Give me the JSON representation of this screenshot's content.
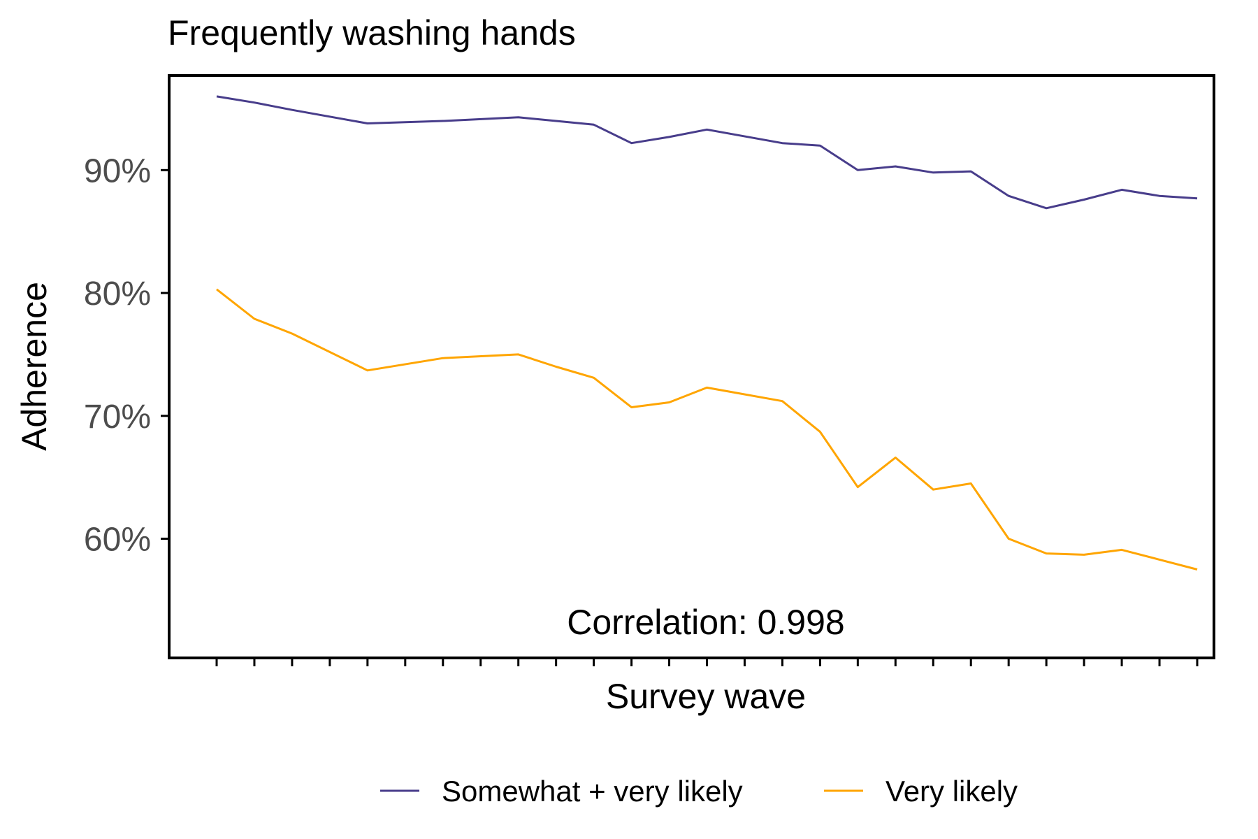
{
  "chart_data": {
    "type": "line",
    "title": "Frequently washing hands",
    "xlabel": "Survey wave",
    "ylabel": "Adherence",
    "x": [
      1,
      2,
      3,
      4,
      5,
      6,
      7,
      8,
      9,
      10,
      11,
      12,
      13,
      14,
      15,
      16,
      17,
      18,
      19,
      20,
      21,
      22,
      23,
      24,
      25,
      26,
      27
    ],
    "xlim": [
      1,
      27
    ],
    "ylim": [
      50.3,
      97.7
    ],
    "yticks": [
      60,
      70,
      80,
      90
    ],
    "ytick_labels": [
      "60%",
      "70%",
      "80%",
      "90%"
    ],
    "grid": false,
    "legend_position": "bottom",
    "annotation": "Correlation: 0.998",
    "colors": {
      "somewhat_very": "#483D8B",
      "very": "#FFA500"
    },
    "series": [
      {
        "name": "Somewhat + very likely",
        "color": "#483D8B",
        "x": [
          1,
          2,
          3,
          5,
          7,
          9,
          10,
          11,
          12,
          13,
          14,
          16,
          17,
          18,
          19,
          20,
          21,
          22,
          23,
          24,
          25,
          26,
          27
        ],
        "values": [
          96.0,
          95.5,
          94.9,
          93.8,
          94.0,
          94.3,
          94.0,
          93.7,
          92.2,
          92.7,
          93.3,
          92.2,
          92.0,
          90.0,
          90.3,
          89.8,
          89.9,
          87.9,
          86.9,
          87.6,
          88.4,
          87.9,
          87.7
        ]
      },
      {
        "name": "Very likely",
        "color": "#FFA500",
        "x": [
          1,
          2,
          3,
          5,
          7,
          9,
          10,
          11,
          12,
          13,
          14,
          16,
          17,
          18,
          19,
          20,
          21,
          22,
          23,
          24,
          25,
          26,
          27
        ],
        "values": [
          80.3,
          77.9,
          76.7,
          73.7,
          74.7,
          75.0,
          74.0,
          73.1,
          70.7,
          71.1,
          72.3,
          71.2,
          68.7,
          64.2,
          66.6,
          64.0,
          64.5,
          60.0,
          58.8,
          58.7,
          59.1,
          58.3,
          57.5
        ]
      }
    ]
  }
}
